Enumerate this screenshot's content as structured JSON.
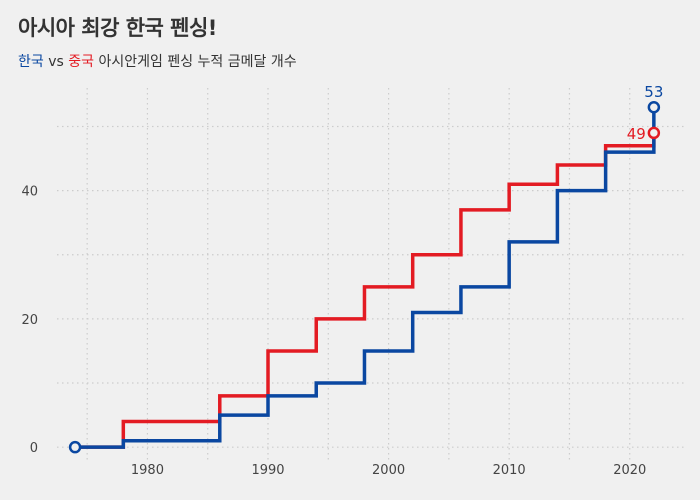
{
  "title": "아시아 최강 한국 펜싱!",
  "subtitle": {
    "korea": "한국",
    "vs": " vs ",
    "china": "중국",
    "rest": " 아시안게임 펜싱 누적 금메달 개수"
  },
  "colors": {
    "korea": "#0a47a1",
    "china": "#e31b23",
    "background": "#f0f0f0",
    "grid": "#cccccc",
    "text": "#333333"
  },
  "chart_data": {
    "type": "line",
    "step": true,
    "title": "아시아 최강 한국 펜싱!",
    "subtitle": "한국 vs 중국 아시안게임 펜싱 누적 금메달 개수",
    "xlabel": "",
    "ylabel": "",
    "xlim": [
      1972.5,
      2024.5
    ],
    "ylim": [
      -2,
      56
    ],
    "xticks": [
      1980,
      1990,
      2000,
      2010,
      2020
    ],
    "yticks": [
      0,
      20,
      40
    ],
    "grid": true,
    "series": [
      {
        "name": "중국",
        "color": "#e31b23",
        "x": [
          1974,
          1978,
          1982,
          1986,
          1990,
          1994,
          1998,
          2002,
          2006,
          2010,
          2014,
          2018,
          2022
        ],
        "values": [
          0,
          4,
          4,
          8,
          15,
          20,
          25,
          30,
          37,
          41,
          44,
          47,
          49
        ],
        "end_label": "49"
      },
      {
        "name": "한국",
        "color": "#0a47a1",
        "x": [
          1974,
          1978,
          1982,
          1986,
          1990,
          1994,
          1998,
          2002,
          2006,
          2010,
          2014,
          2018,
          2022
        ],
        "values": [
          0,
          1,
          1,
          5,
          8,
          10,
          15,
          21,
          25,
          32,
          40,
          46,
          53
        ],
        "end_label": "53"
      }
    ]
  }
}
